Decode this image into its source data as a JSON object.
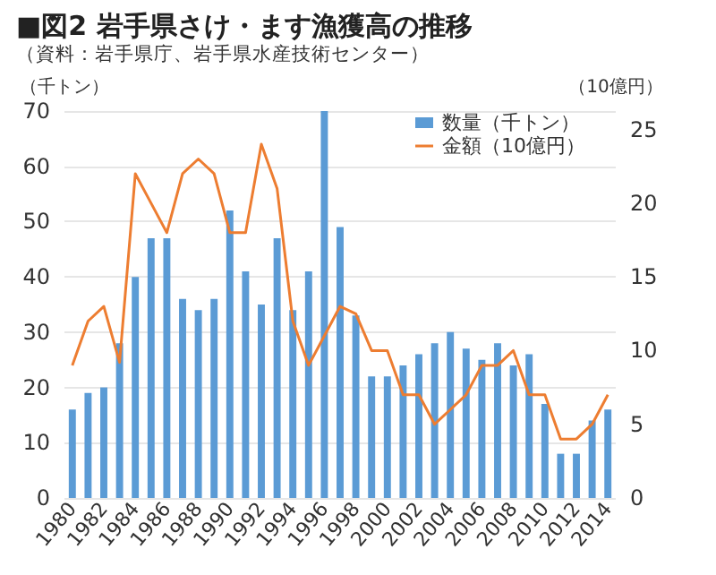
{
  "chart_data": {
    "type": "bar",
    "title": "■図2 岩手県さけ・ます漁獲高の推移",
    "subtitle": "（資料：岩手県庁、岩手県水産技術センター）",
    "ylabel": "（千トン）",
    "y2label": "（10億円）",
    "categories": [
      "1980",
      null,
      "1982",
      null,
      "1984",
      null,
      "1986",
      null,
      "1988",
      null,
      "1990",
      null,
      "1992",
      null,
      "1994",
      null,
      "1996",
      null,
      "1998",
      null,
      "2000",
      null,
      "2002",
      null,
      "2004",
      null,
      "2006",
      null,
      "2008",
      null,
      "2010",
      null,
      "2012",
      null,
      "2014"
    ],
    "series": [
      {
        "name": "数量（千トン）",
        "color": "#5b9bd5",
        "values": [
          16,
          19,
          20,
          28,
          40,
          47,
          47,
          36,
          34,
          36,
          52,
          41,
          35,
          47,
          34,
          41,
          70,
          49,
          33,
          22,
          22,
          24,
          26,
          28,
          30,
          27,
          25,
          28,
          24,
          26,
          17,
          8,
          8,
          14,
          16
        ]
      },
      {
        "name": "金額（10億円）",
        "type": "line",
        "axis": "y2",
        "color": "#ed7d31",
        "values": [
          9,
          12,
          13,
          9.2,
          22,
          20,
          18,
          22,
          23,
          22,
          18,
          18,
          24,
          21,
          12,
          9,
          11,
          13,
          12.5,
          10,
          10,
          7,
          7,
          5,
          6,
          7,
          9,
          9,
          10,
          7,
          7,
          4,
          4,
          5,
          7
        ]
      }
    ],
    "ylim": [
      0,
      70
    ],
    "yticks": [
      0,
      10,
      20,
      30,
      40,
      50,
      60,
      70
    ],
    "y2lim": [
      0,
      26.25
    ],
    "y2ticks": [
      0,
      5,
      10,
      15,
      20,
      25
    ],
    "grid": "y",
    "legend": "top right",
    "marker": "none"
  }
}
